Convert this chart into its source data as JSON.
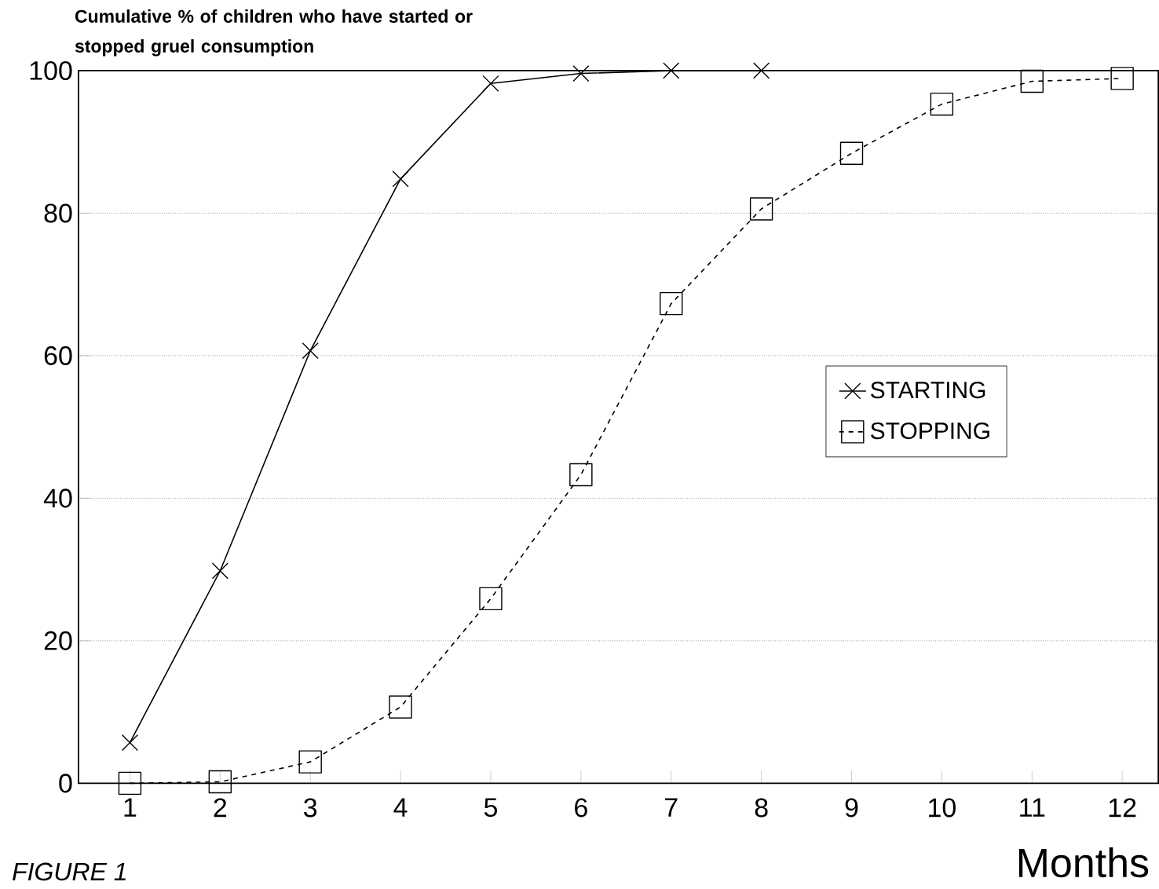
{
  "chart_data": {
    "type": "line",
    "ylabel": "Cumulative % of children who have started or stopped gruel consumption",
    "xlabel": "Months",
    "annotations": [
      "FIGURE 1"
    ],
    "x": [
      1,
      2,
      3,
      4,
      5,
      6,
      7,
      8,
      9,
      10,
      11,
      12
    ],
    "xlim": [
      0.43,
      12.4
    ],
    "xticks": [
      1,
      2,
      3,
      4,
      5,
      6,
      7,
      8,
      9,
      10,
      11,
      12
    ],
    "ylim": [
      0,
      100
    ],
    "yticks": [
      0,
      20,
      40,
      60,
      80,
      100
    ],
    "grid": "y",
    "legend": "right",
    "series": [
      {
        "name": "STARTING",
        "color": "#000000",
        "marker": "cross",
        "line_style": "solid",
        "x": [
          1,
          2,
          3,
          4,
          5,
          6,
          7,
          8
        ],
        "values": [
          5.7,
          29.8,
          60.7,
          84.8,
          98.2,
          99.6,
          100,
          100
        ]
      },
      {
        "name": "STOPPING",
        "color": "#000000",
        "marker": "square",
        "line_style": "dashed",
        "values": [
          0,
          0.2,
          3.0,
          10.7,
          25.9,
          43.3,
          67.3,
          80.6,
          88.4,
          95.3,
          98.5,
          98.9
        ]
      }
    ]
  }
}
